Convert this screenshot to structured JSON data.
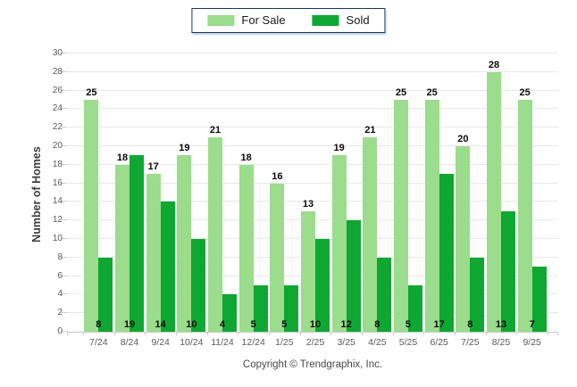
{
  "legend": {
    "for_sale": "For Sale",
    "sold": "Sold"
  },
  "chart_data": {
    "type": "bar",
    "title": "",
    "xlabel": "",
    "ylabel": "Number of Homes",
    "ylim": [
      0,
      30
    ],
    "ytick_step": 2,
    "grid": true,
    "legend_position": "top-center",
    "categories": [
      "7/24",
      "8/24",
      "9/24",
      "10/24",
      "11/24",
      "12/24",
      "1/25",
      "2/25",
      "3/25",
      "4/25",
      "5/25",
      "6/25",
      "7/25",
      "8/25",
      "9/25"
    ],
    "series": [
      {
        "name": "For Sale",
        "color": "#9BDC8D",
        "values": [
          25,
          18,
          17,
          19,
          21,
          18,
          16,
          13,
          19,
          21,
          25,
          25,
          20,
          28,
          25
        ]
      },
      {
        "name": "Sold",
        "color": "#0EA732",
        "values": [
          8,
          19,
          14,
          10,
          4,
          5,
          5,
          10,
          12,
          8,
          5,
          17,
          8,
          13,
          7
        ]
      }
    ],
    "value_label_placement": {
      "for_sale": "above-bar",
      "sold": "bottom-inside"
    }
  },
  "footer": {
    "copyright": "Copyright © Trendgraphix, Inc."
  }
}
